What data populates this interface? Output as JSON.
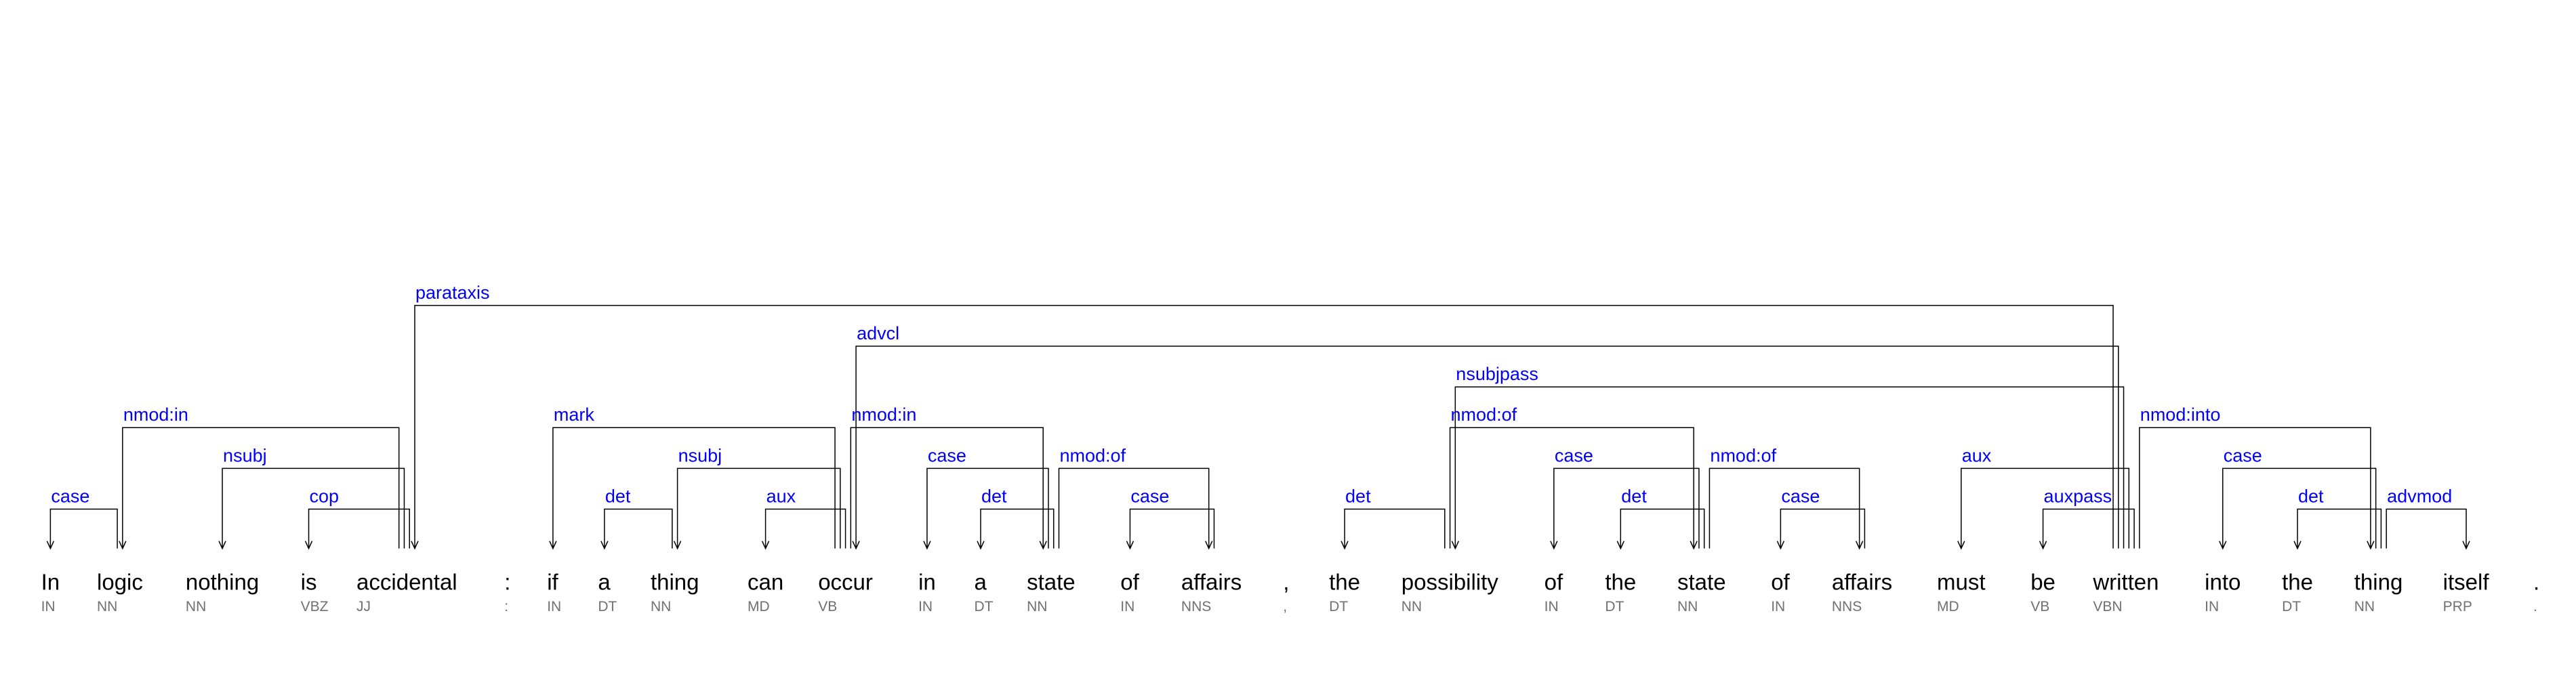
{
  "tokens": [
    {
      "word": "In",
      "tag": "IN"
    },
    {
      "word": "logic",
      "tag": "NN"
    },
    {
      "word": "nothing",
      "tag": "NN"
    },
    {
      "word": "is",
      "tag": "VBZ"
    },
    {
      "word": "accidental",
      "tag": "JJ"
    },
    {
      "word": ":",
      "tag": ":"
    },
    {
      "word": "if",
      "tag": "IN"
    },
    {
      "word": "a",
      "tag": "DT"
    },
    {
      "word": "thing",
      "tag": "NN"
    },
    {
      "word": "can",
      "tag": "MD"
    },
    {
      "word": "occur",
      "tag": "VB"
    },
    {
      "word": "in",
      "tag": "IN"
    },
    {
      "word": "a",
      "tag": "DT"
    },
    {
      "word": "state",
      "tag": "NN"
    },
    {
      "word": "of",
      "tag": "IN"
    },
    {
      "word": "affairs",
      "tag": "NNS"
    },
    {
      "word": ",",
      "tag": ","
    },
    {
      "word": "the",
      "tag": "DT"
    },
    {
      "word": "possibility",
      "tag": "NN"
    },
    {
      "word": "of",
      "tag": "IN"
    },
    {
      "word": "the",
      "tag": "DT"
    },
    {
      "word": "state",
      "tag": "NN"
    },
    {
      "word": "of",
      "tag": "IN"
    },
    {
      "word": "affairs",
      "tag": "NNS"
    },
    {
      "word": "must",
      "tag": "MD"
    },
    {
      "word": "be",
      "tag": "VB"
    },
    {
      "word": "written",
      "tag": "VBN"
    },
    {
      "word": "into",
      "tag": "IN"
    },
    {
      "word": "the",
      "tag": "DT"
    },
    {
      "word": "thing",
      "tag": "NN"
    },
    {
      "word": "itself",
      "tag": "PRP"
    },
    {
      "word": ".",
      "tag": "."
    }
  ],
  "dependencies": [
    {
      "head": 1,
      "dep": 0,
      "label": "case"
    },
    {
      "head": 4,
      "dep": 1,
      "label": "nmod:in"
    },
    {
      "head": 4,
      "dep": 2,
      "label": "nsubj"
    },
    {
      "head": 4,
      "dep": 3,
      "label": "cop"
    },
    {
      "head": 26,
      "dep": 4,
      "label": "parataxis"
    },
    {
      "head": 10,
      "dep": 6,
      "label": "mark"
    },
    {
      "head": 8,
      "dep": 7,
      "label": "det"
    },
    {
      "head": 10,
      "dep": 8,
      "label": "nsubj"
    },
    {
      "head": 10,
      "dep": 9,
      "label": "aux"
    },
    {
      "head": 26,
      "dep": 10,
      "label": "advcl"
    },
    {
      "head": 13,
      "dep": 11,
      "label": "case"
    },
    {
      "head": 13,
      "dep": 12,
      "label": "det"
    },
    {
      "head": 10,
      "dep": 13,
      "label": "nmod:in"
    },
    {
      "head": 15,
      "dep": 14,
      "label": "case"
    },
    {
      "head": 13,
      "dep": 15,
      "label": "nmod:of"
    },
    {
      "head": 18,
      "dep": 17,
      "label": "det"
    },
    {
      "head": 26,
      "dep": 18,
      "label": "nsubjpass"
    },
    {
      "head": 21,
      "dep": 19,
      "label": "case"
    },
    {
      "head": 21,
      "dep": 20,
      "label": "det"
    },
    {
      "head": 18,
      "dep": 21,
      "label": "nmod:of"
    },
    {
      "head": 23,
      "dep": 22,
      "label": "case"
    },
    {
      "head": 21,
      "dep": 23,
      "label": "nmod:of"
    },
    {
      "head": 26,
      "dep": 24,
      "label": "aux"
    },
    {
      "head": 26,
      "dep": 25,
      "label": "auxpass"
    },
    {
      "head": 29,
      "dep": 27,
      "label": "case"
    },
    {
      "head": 29,
      "dep": 28,
      "label": "det"
    },
    {
      "head": 26,
      "dep": 29,
      "label": "nmod:into"
    },
    {
      "head": 29,
      "dep": 30,
      "label": "advmod"
    }
  ]
}
